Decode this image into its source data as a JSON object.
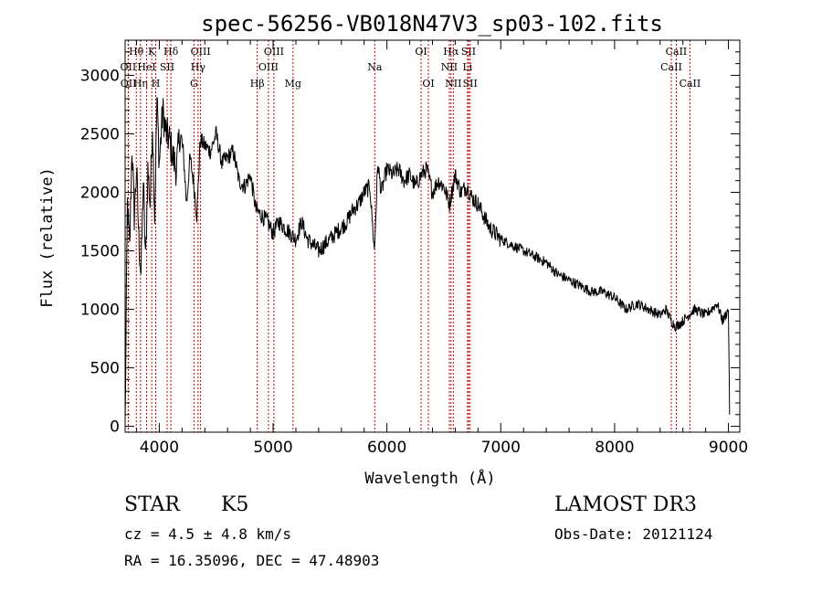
{
  "chart_data": {
    "type": "line",
    "title": "spec-56256-VB018N47V3_sp03-102.fits",
    "xlabel": "Wavelength (Å)",
    "ylabel": "Flux (relative)",
    "xlim": [
      3700,
      9100
    ],
    "ylim": [
      -50,
      3300
    ],
    "xticks": [
      4000,
      5000,
      6000,
      7000,
      8000,
      9000
    ],
    "xtick_labels": [
      "4000",
      "5000",
      "6000",
      "7000",
      "8000",
      "9000"
    ],
    "yticks": [
      0,
      500,
      1000,
      1500,
      2000,
      2500,
      3000
    ],
    "ytick_labels": [
      "0",
      "500",
      "1000",
      "1500",
      "2000",
      "2500",
      "3000"
    ],
    "series": [
      {
        "name": "flux",
        "color": "#000000",
        "x": [
          3700,
          3720,
          3740,
          3760,
          3780,
          3800,
          3820,
          3840,
          3860,
          3880,
          3900,
          3920,
          3940,
          3960,
          3980,
          4000,
          4030,
          4060,
          4090,
          4120,
          4150,
          4180,
          4210,
          4240,
          4270,
          4300,
          4330,
          4360,
          4400,
          4450,
          4500,
          4550,
          4600,
          4650,
          4700,
          4750,
          4800,
          4850,
          4900,
          4950,
          5000,
          5050,
          5100,
          5150,
          5200,
          5250,
          5300,
          5350,
          5400,
          5450,
          5500,
          5550,
          5600,
          5650,
          5700,
          5750,
          5800,
          5850,
          5890,
          5920,
          5950,
          6000,
          6050,
          6100,
          6150,
          6200,
          6250,
          6300,
          6350,
          6400,
          6450,
          6500,
          6550,
          6600,
          6650,
          6700,
          6750,
          6800,
          6850,
          6900,
          6950,
          7000,
          7100,
          7200,
          7300,
          7400,
          7500,
          7600,
          7700,
          7800,
          7900,
          8000,
          8100,
          8200,
          8300,
          8400,
          8450,
          8500,
          8540,
          8600,
          8650,
          8700,
          8800,
          8900,
          8950,
          9000,
          9010
        ],
        "y": [
          0,
          1900,
          1500,
          2400,
          1800,
          2200,
          1600,
          1300,
          2100,
          1400,
          2200,
          1900,
          2600,
          1800,
          2800,
          2250,
          2700,
          2500,
          2450,
          2300,
          2200,
          2500,
          2350,
          1900,
          2300,
          2100,
          1800,
          2450,
          2400,
          2350,
          2500,
          2250,
          2300,
          2350,
          2100,
          2050,
          2150,
          1850,
          1800,
          1750,
          1650,
          1750,
          1700,
          1650,
          1600,
          1750,
          1600,
          1550,
          1500,
          1550,
          1600,
          1650,
          1700,
          1750,
          1850,
          1900,
          2000,
          2050,
          1500,
          2250,
          2000,
          2200,
          2150,
          2200,
          2100,
          2150,
          2050,
          2150,
          2200,
          2000,
          2100,
          2050,
          1900,
          2150,
          2000,
          2050,
          1950,
          1900,
          1800,
          1700,
          1650,
          1600,
          1550,
          1500,
          1450,
          1400,
          1300,
          1250,
          1200,
          1150,
          1150,
          1100,
          1000,
          1050,
          1000,
          950,
          1000,
          900,
          850,
          900,
          950,
          1000,
          950,
          1050,
          900,
          1000,
          100
        ]
      }
    ],
    "lines": [
      {
        "label": "Hθ",
        "wl": 3798,
        "row": 0
      },
      {
        "label": "OII",
        "wl": 3727,
        "row": 1
      },
      {
        "label": "OII",
        "wl": 3729,
        "row": 2
      },
      {
        "label": "Hη",
        "wl": 3835,
        "row": 2
      },
      {
        "label": "K",
        "wl": 3934,
        "row": 0
      },
      {
        "label": "HeI",
        "wl": 3889,
        "row": 1
      },
      {
        "label": "SII",
        "wl": 4069,
        "row": 1
      },
      {
        "label": "H",
        "wl": 3969,
        "row": 2
      },
      {
        "label": "Hδ",
        "wl": 4102,
        "row": 0
      },
      {
        "label": "OIII",
        "wl": 4363,
        "row": 0
      },
      {
        "label": "Hγ",
        "wl": 4341,
        "row": 1
      },
      {
        "label": "G",
        "wl": 4305,
        "row": 2
      },
      {
        "label": "Hβ",
        "wl": 4861,
        "row": 2
      },
      {
        "label": "OIII",
        "wl": 5007,
        "row": 0
      },
      {
        "label": "OIII",
        "wl": 4959,
        "row": 1
      },
      {
        "label": "Mg",
        "wl": 5175,
        "row": 2
      },
      {
        "label": "Na",
        "wl": 5893,
        "row": 1
      },
      {
        "label": "OI",
        "wl": 6300,
        "row": 0
      },
      {
        "label": "OI",
        "wl": 6364,
        "row": 2
      },
      {
        "label": "Hα",
        "wl": 6563,
        "row": 0
      },
      {
        "label": "SII",
        "wl": 6717,
        "row": 0
      },
      {
        "label": "NII",
        "wl": 6548,
        "row": 1
      },
      {
        "label": "Li",
        "wl": 6708,
        "row": 1
      },
      {
        "label": "NII",
        "wl": 6583,
        "row": 2
      },
      {
        "label": "SII",
        "wl": 6731,
        "row": 2
      },
      {
        "label": "CaII",
        "wl": 8542,
        "row": 0
      },
      {
        "label": "CaII",
        "wl": 8498,
        "row": 1
      },
      {
        "label": "CaII",
        "wl": 8662,
        "row": 2
      }
    ],
    "annotation_color": "#cc0000"
  },
  "info": {
    "object_class": "STAR",
    "subclass": "K5",
    "survey": "LAMOST DR3",
    "redshift": "cz = 4.5 ± 4.8 km/s",
    "obs_date": "Obs-Date: 20121124",
    "coords": "RA =  16.35096, DEC =  47.48903"
  }
}
